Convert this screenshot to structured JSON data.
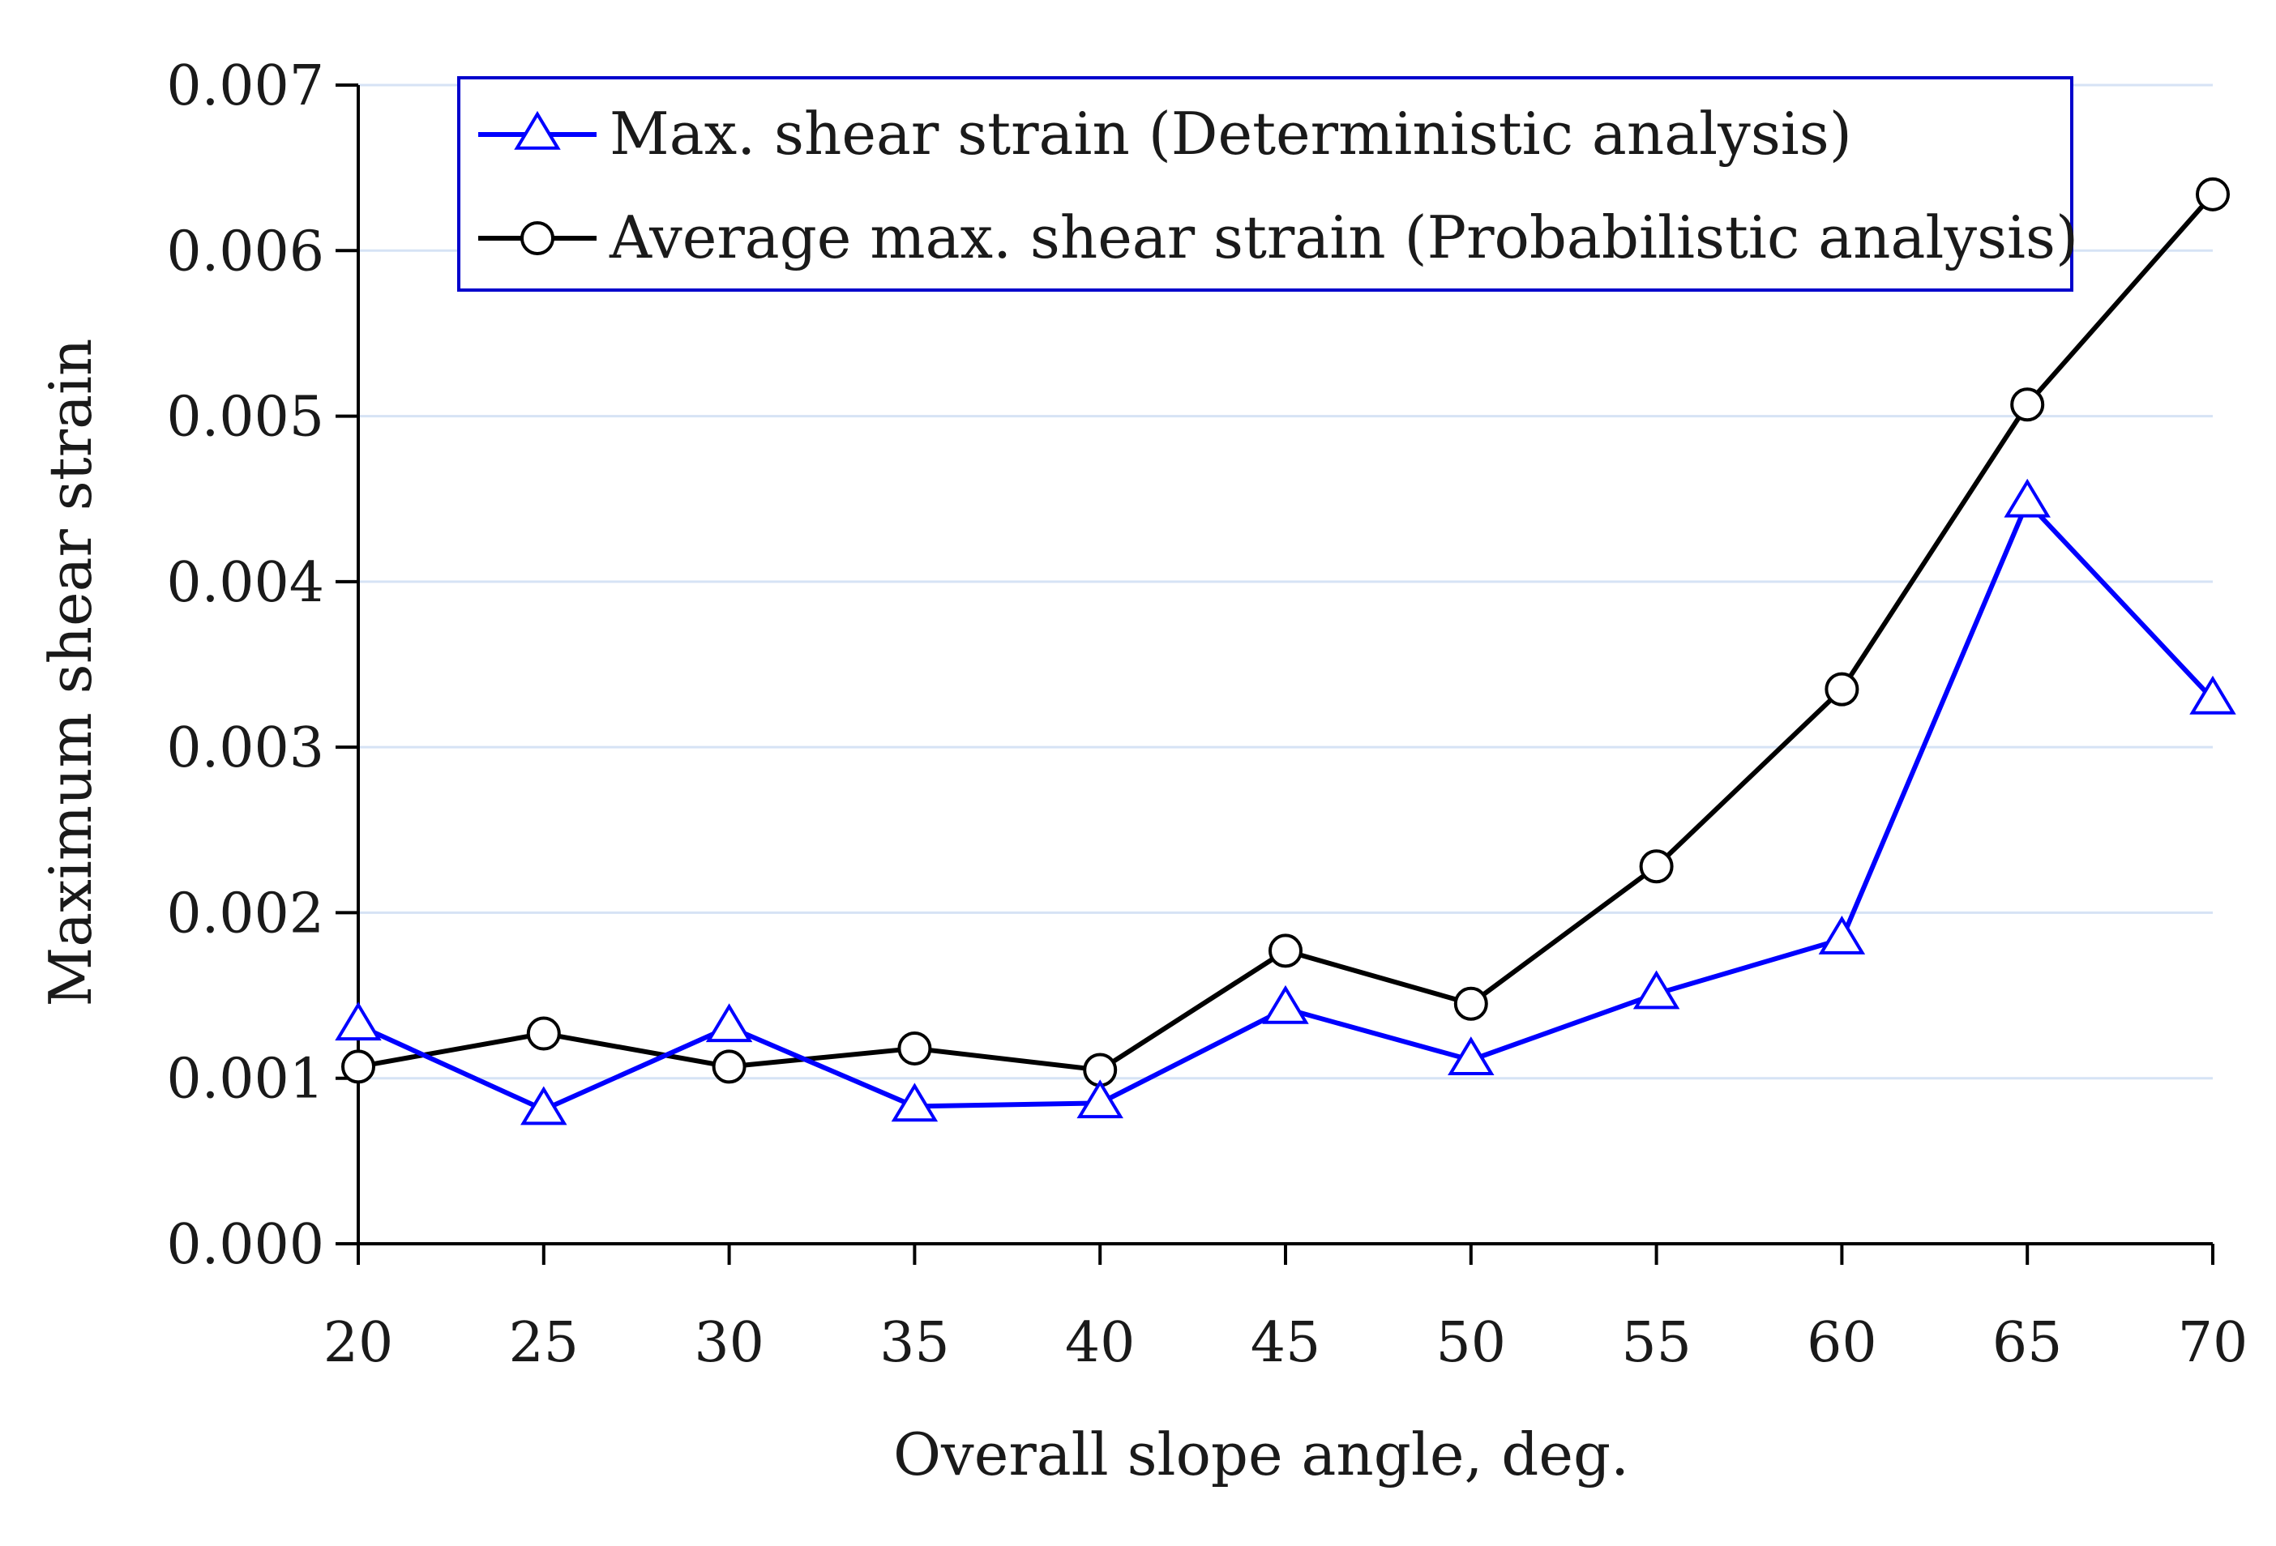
{
  "chart_data": {
    "type": "line",
    "title": "",
    "xlabel": "Overall slope angle, deg.",
    "ylabel": "Maximum shear strain",
    "x": [
      20,
      25,
      30,
      35,
      40,
      45,
      50,
      55,
      60,
      65,
      70
    ],
    "x_tick_labels": [
      "20",
      "25",
      "30",
      "35",
      "40",
      "45",
      "50",
      "55",
      "60",
      "65",
      "70"
    ],
    "y_tick_values": [
      0,
      0.001,
      0.002,
      0.003,
      0.004,
      0.005,
      0.006,
      0.007
    ],
    "y_tick_labels": [
      "0.000",
      "0.001",
      "0.002",
      "0.003",
      "0.004",
      "0.005",
      "0.006",
      "0.007"
    ],
    "xlim": [
      20,
      70
    ],
    "ylim": [
      0,
      0.007
    ],
    "grid": "horizontal",
    "legend_position": "top",
    "series": [
      {
        "name": "Max. shear strain (Deterministic analysis)",
        "marker": "triangle",
        "color": "#0000ff",
        "values": [
          0.00132,
          0.00081,
          0.00131,
          0.00083,
          0.00085,
          0.00142,
          0.00111,
          0.00151,
          0.00184,
          0.00448,
          0.00329
        ]
      },
      {
        "name": "Average max. shear strain (Probabilistic analysis)",
        "marker": "circle",
        "color": "#000000",
        "values": [
          0.00107,
          0.00127,
          0.00107,
          0.00118,
          0.00105,
          0.00177,
          0.00145,
          0.00228,
          0.00335,
          0.00507,
          0.00634
        ]
      }
    ],
    "colors": {
      "grid": "#d6e3f5",
      "axis": "#000000",
      "legend_border": "#0000cc"
    }
  }
}
